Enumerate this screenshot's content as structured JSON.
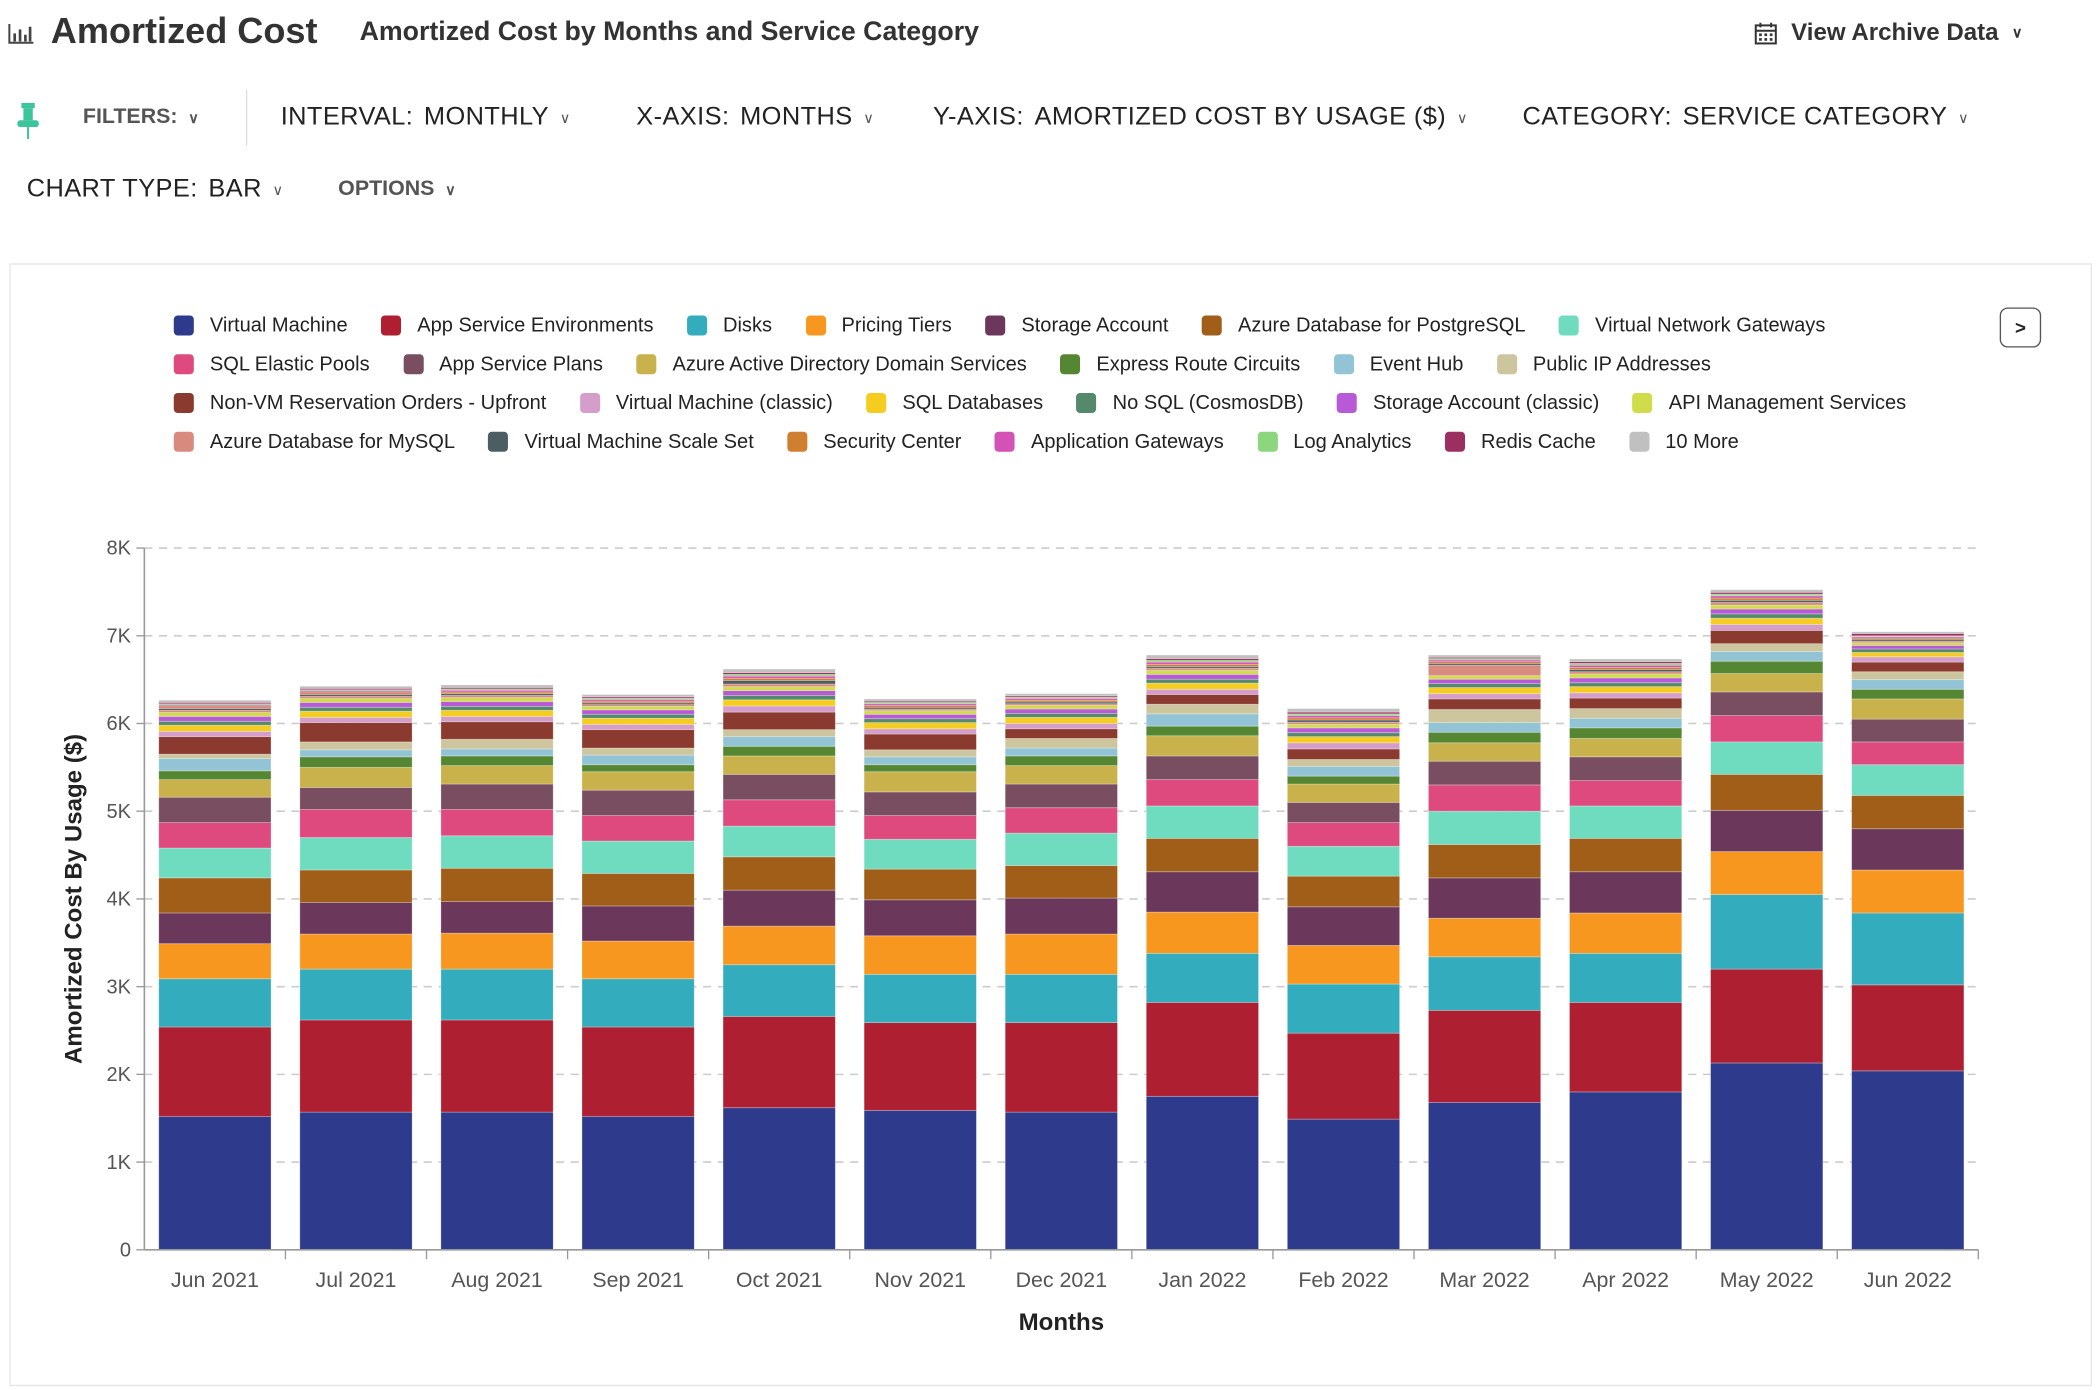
{
  "header": {
    "title": "Amortized Cost",
    "subtitle": "Amortized Cost by Months and Service Category",
    "archive_label": "View Archive Data"
  },
  "toolbar": {
    "filters": "FILTERS:",
    "interval_key": "INTERVAL:",
    "interval_value": "MONTHLY",
    "xaxis_key": "X-AXIS:",
    "xaxis_value": "MONTHS",
    "yaxis_key": "Y-AXIS:",
    "yaxis_value": "AMORTIZED COST BY USAGE ($)",
    "category_key": "CATEGORY:",
    "category_value": "SERVICE CATEGORY",
    "charttype_key": "CHART TYPE:",
    "charttype_value": "BAR",
    "options": "OPTIONS"
  },
  "legend_next": ">",
  "chart_data": {
    "type": "bar",
    "stacked": true,
    "xlabel": "Months",
    "ylabel": "Amortized Cost By Usage ($)",
    "ylim": [
      0,
      8000
    ],
    "yticks": [
      {
        "v": 0,
        "label": "0"
      },
      {
        "v": 1000,
        "label": "1K"
      },
      {
        "v": 2000,
        "label": "2K"
      },
      {
        "v": 3000,
        "label": "3K"
      },
      {
        "v": 4000,
        "label": "4K"
      },
      {
        "v": 5000,
        "label": "5K"
      },
      {
        "v": 6000,
        "label": "6K"
      },
      {
        "v": 7000,
        "label": "7K"
      },
      {
        "v": 8000,
        "label": "8K"
      }
    ],
    "grid": true,
    "legend_position": "top",
    "categories": [
      "Jun 2021",
      "Jul 2021",
      "Aug 2021",
      "Sep 2021",
      "Oct 2021",
      "Nov 2021",
      "Dec 2021",
      "Jan 2022",
      "Feb 2022",
      "Mar 2022",
      "Apr 2022",
      "May 2022",
      "Jun 2022"
    ],
    "series": [
      {
        "name": "Virtual Machine",
        "color": "#2e3a8c",
        "values": [
          1520,
          1570,
          1570,
          1520,
          1620,
          1590,
          1570,
          1750,
          1490,
          1680,
          1800,
          2130,
          2040
        ]
      },
      {
        "name": "App Service Environments",
        "color": "#ae1f31",
        "values": [
          1020,
          1050,
          1050,
          1020,
          1040,
          1000,
          1020,
          1070,
          980,
          1050,
          1020,
          1070,
          980
        ]
      },
      {
        "name": "Disks",
        "color": "#33adbd",
        "values": [
          550,
          580,
          580,
          550,
          590,
          550,
          550,
          560,
          560,
          610,
          560,
          850,
          820
        ]
      },
      {
        "name": "Pricing Tiers",
        "color": "#f7971f",
        "values": [
          400,
          400,
          410,
          430,
          440,
          440,
          460,
          470,
          440,
          440,
          460,
          490,
          490
        ]
      },
      {
        "name": "Storage Account",
        "color": "#6b385c",
        "values": [
          350,
          360,
          360,
          400,
          410,
          410,
          410,
          460,
          440,
          460,
          470,
          470,
          470
        ]
      },
      {
        "name": "Azure Database for PostgreSQL",
        "color": "#a05e18",
        "values": [
          400,
          370,
          380,
          370,
          380,
          350,
          370,
          380,
          350,
          380,
          380,
          410,
          380
        ]
      },
      {
        "name": "Virtual Network Gateways",
        "color": "#70dcbf",
        "values": [
          340,
          370,
          370,
          370,
          350,
          340,
          370,
          370,
          340,
          380,
          370,
          370,
          350
        ]
      },
      {
        "name": "SQL Elastic Pools",
        "color": "#de4a7e",
        "values": [
          290,
          320,
          300,
          290,
          300,
          270,
          290,
          300,
          270,
          300,
          290,
          300,
          260
        ]
      },
      {
        "name": "App Service Plans",
        "color": "#7a4e61",
        "values": [
          290,
          250,
          290,
          290,
          290,
          270,
          270,
          270,
          230,
          270,
          270,
          270,
          260
        ]
      },
      {
        "name": "Azure Active Directory Domain Services",
        "color": "#c9b24b",
        "values": [
          200,
          230,
          210,
          210,
          210,
          230,
          210,
          230,
          210,
          210,
          210,
          210,
          230
        ]
      },
      {
        "name": "Express Route Circuits",
        "color": "#558631",
        "values": [
          100,
          120,
          110,
          80,
          110,
          80,
          110,
          110,
          90,
          120,
          120,
          140,
          110
        ]
      },
      {
        "name": "Event Hub",
        "color": "#93c4d6",
        "values": [
          140,
          80,
          80,
          110,
          110,
          90,
          90,
          140,
          110,
          110,
          110,
          110,
          110
        ]
      },
      {
        "name": "Public IP Addresses",
        "color": "#ccc59e",
        "values": [
          50,
          90,
          110,
          80,
          80,
          80,
          110,
          110,
          80,
          150,
          110,
          90,
          90
        ]
      },
      {
        "name": "Non-VM Reservation Orders - Upfront",
        "color": "#8b3a30",
        "values": [
          200,
          220,
          200,
          210,
          200,
          180,
          110,
          110,
          120,
          120,
          120,
          150,
          110
        ]
      },
      {
        "name": "Virtual Machine (classic)",
        "color": "#d49ecb",
        "values": [
          60,
          60,
          60,
          60,
          70,
          60,
          60,
          60,
          70,
          60,
          60,
          70,
          60
        ]
      },
      {
        "name": "SQL Databases",
        "color": "#f5cd20",
        "values": [
          70,
          70,
          70,
          70,
          70,
          70,
          70,
          70,
          70,
          70,
          70,
          70,
          50
        ]
      },
      {
        "name": "No SQL (CosmosDB)",
        "color": "#548a6b",
        "values": [
          45,
          45,
          45,
          45,
          50,
          45,
          45,
          45,
          45,
          45,
          45,
          50,
          40
        ]
      },
      {
        "name": "Storage Account (classic)",
        "color": "#b85ad8",
        "values": [
          55,
          55,
          55,
          50,
          55,
          50,
          50,
          55,
          55,
          50,
          55,
          55,
          40
        ]
      },
      {
        "name": "API Management Services",
        "color": "#d1dc4a",
        "values": [
          45,
          45,
          45,
          40,
          45,
          40,
          40,
          45,
          40,
          40,
          45,
          45,
          30
        ]
      },
      {
        "name": "Azure Database for MySQL",
        "color": "#d98a7e",
        "values": [
          25,
          25,
          25,
          20,
          30,
          20,
          20,
          25,
          25,
          120,
          25,
          30,
          20
        ]
      },
      {
        "name": "Virtual Machine Scale Set",
        "color": "#4d5e63",
        "values": [
          20,
          20,
          20,
          20,
          40,
          20,
          20,
          20,
          25,
          20,
          25,
          25,
          20
        ]
      },
      {
        "name": "Security Center",
        "color": "#d07f30",
        "values": [
          20,
          20,
          20,
          20,
          25,
          20,
          20,
          25,
          25,
          20,
          25,
          25,
          15
        ]
      },
      {
        "name": "Application Gateways",
        "color": "#d452b6",
        "values": [
          20,
          20,
          20,
          20,
          25,
          20,
          20,
          25,
          25,
          20,
          25,
          25,
          15
        ]
      },
      {
        "name": "Log Analytics",
        "color": "#8cd67e",
        "values": [
          15,
          15,
          15,
          15,
          20,
          15,
          15,
          20,
          20,
          15,
          20,
          20,
          10
        ]
      },
      {
        "name": "Redis Cache",
        "color": "#9b3060",
        "values": [
          15,
          15,
          15,
          15,
          20,
          15,
          15,
          20,
          20,
          15,
          20,
          20,
          25
        ]
      },
      {
        "name": "10 More",
        "color": "#c0c0c0",
        "values": [
          25,
          25,
          30,
          25,
          40,
          25,
          25,
          40,
          40,
          25,
          30,
          30,
          20
        ]
      }
    ]
  }
}
